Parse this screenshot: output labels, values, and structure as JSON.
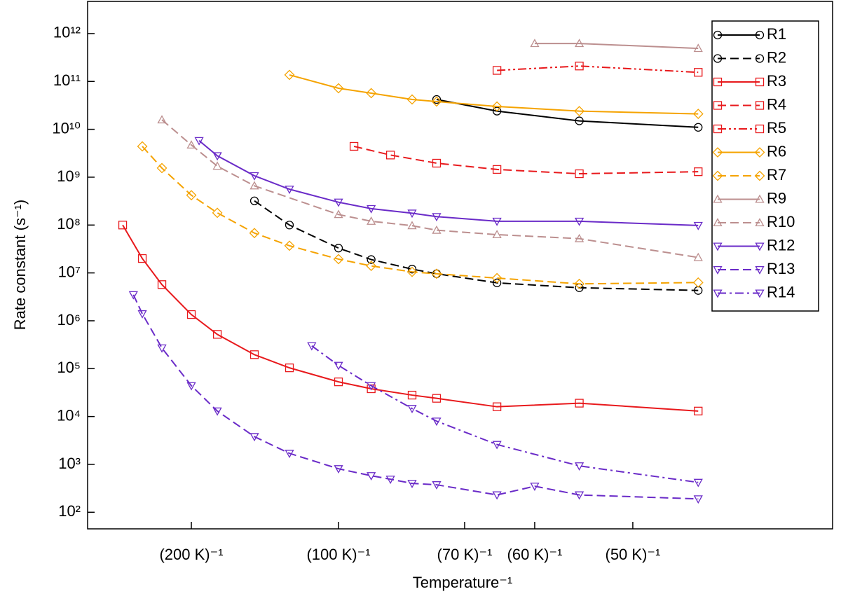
{
  "chart_data": {
    "type": "line",
    "xlabel": "Temperature⁻¹",
    "ylabel": "Rate constant (s⁻¹)",
    "xscale": "reciprocal",
    "yscale": "log",
    "xlim": [
      678,
      37.33
    ],
    "ylim": [
      45,
      4700000000000.0
    ],
    "xticks": [
      {
        "value": 200,
        "label": "(200 K)⁻¹"
      },
      {
        "value": 100,
        "label": "(100 K)⁻¹"
      },
      {
        "value": 70,
        "label": "(70 K)⁻¹"
      },
      {
        "value": 60,
        "label": "(60 K)⁻¹"
      },
      {
        "value": 50,
        "label": "(50 K)⁻¹"
      }
    ],
    "yticks": [
      {
        "value": 100,
        "label": "10²"
      },
      {
        "value": 1000,
        "label": "10³"
      },
      {
        "value": 10000,
        "label": "10⁴"
      },
      {
        "value": 100000,
        "label": "10⁵"
      },
      {
        "value": 1000000,
        "label": "10⁶"
      },
      {
        "value": 10000000,
        "label": "10⁷"
      },
      {
        "value": 100000000,
        "label": "10⁸"
      },
      {
        "value": 1000000000,
        "label": "10⁹"
      },
      {
        "value": 10000000000,
        "label": "10¹⁰"
      },
      {
        "value": 100000000000,
        "label": "10¹¹"
      },
      {
        "value": 1000000000000,
        "label": "10¹²"
      }
    ],
    "legend": "upper right",
    "series": [
      {
        "name": "R1",
        "color": "#000000",
        "linestyle": "solid",
        "marker": "circle",
        "x": [
          75,
          65,
          55,
          45
        ],
        "values": [
          42000000000.0,
          24000000000.0,
          15000000000.0,
          11000000000.0
        ]
      },
      {
        "name": "R2",
        "color": "#000000",
        "linestyle": "dashed",
        "marker": "circle",
        "x": [
          140,
          120,
          100,
          90,
          80,
          75,
          65,
          55,
          45
        ],
        "values": [
          320000000.0,
          100000000.0,
          33000000.0,
          19000000.0,
          12000000.0,
          9600000.0,
          6200000.0,
          4900000.0,
          4300000.0
        ]
      },
      {
        "name": "R3",
        "color": "#e8191c",
        "linestyle": "solid",
        "marker": "square",
        "x": [
          375,
          300,
          250,
          200,
          170,
          140,
          120,
          100,
          90,
          80,
          75,
          65,
          55,
          45
        ],
        "values": [
          100000000.0,
          20000000.0,
          5700000.0,
          1350000.0,
          520000.0,
          196000.0,
          104000.0,
          53000.0,
          38000.0,
          28000.0,
          24000.0,
          16000.0,
          19000.0,
          13000.0
        ]
      },
      {
        "name": "R4",
        "color": "#e8191c",
        "linestyle": "dashed",
        "marker": "square",
        "x": [
          95,
          85,
          75,
          65,
          55,
          45
        ],
        "values": [
          4400000000.0,
          2900000000.0,
          1960000000.0,
          1450000000.0,
          1180000000.0,
          1300000000.0
        ]
      },
      {
        "name": "R5",
        "color": "#e8191c",
        "linestyle": "dashdotdot",
        "marker": "square",
        "x": [
          65,
          55,
          45
        ],
        "values": [
          170000000000.0,
          210000000000.0,
          155000000000.0
        ]
      },
      {
        "name": "R6",
        "color": "#f5a300",
        "linestyle": "solid",
        "marker": "diamond",
        "x": [
          120,
          100,
          90,
          80,
          75,
          65,
          55,
          45
        ],
        "values": [
          137000000000.0,
          72000000000.0,
          57000000000.0,
          42000000000.0,
          38000000000.0,
          30000000000.0,
          24000000000.0,
          21000000000.0
        ]
      },
      {
        "name": "R7",
        "color": "#f5a300",
        "linestyle": "dashed",
        "marker": "diamond",
        "x": [
          300,
          250,
          200,
          170,
          140,
          120,
          100,
          90,
          80,
          75,
          65,
          55,
          45
        ],
        "values": [
          4400000000.0,
          1550000000.0,
          420000000.0,
          180000000.0,
          68000000.0,
          37000000.0,
          19400000.0,
          14000000.0,
          10500000.0,
          9600000.0,
          7800000.0,
          5900000.0,
          6300000.0
        ]
      },
      {
        "name": "R9",
        "color": "#bc8f8f",
        "linestyle": "solid",
        "marker": "triangle-up",
        "x": [
          60,
          55,
          45
        ],
        "values": [
          620000000000.0,
          620000000000.0,
          490000000000.0
        ]
      },
      {
        "name": "R10",
        "color": "#bc8f8f",
        "linestyle": "dashed",
        "marker": "triangle-up",
        "x": [
          250,
          200,
          170,
          140,
          100,
          90,
          80,
          75,
          65,
          55,
          45
        ],
        "values": [
          15800000000.0,
          4700000000.0,
          1700000000.0,
          660000000.0,
          166000000.0,
          120000000.0,
          97000000.0,
          78000000.0,
          63000000.0,
          52000000.0,
          21000000.0
        ]
      },
      {
        "name": "R12",
        "color": "#6a2bc8",
        "linestyle": "solid",
        "marker": "triangle-down",
        "x": [
          190,
          170,
          140,
          120,
          100,
          90,
          80,
          75,
          65,
          55,
          45
        ],
        "values": [
          5800000000.0,
          2800000000.0,
          1070000000.0,
          560000000.0,
          300000000.0,
          220000000.0,
          177000000.0,
          150000000.0,
          120000000.0,
          120000000.0,
          98000000.0
        ]
      },
      {
        "name": "R13",
        "color": "#6a2bc8",
        "linestyle": "dashed",
        "marker": "triangle-down",
        "x": [
          330,
          300,
          250,
          200,
          170,
          140,
          120,
          100,
          90,
          85,
          80,
          75,
          65,
          60,
          55,
          45
        ],
        "values": [
          3500000.0,
          1400000.0,
          270000.0,
          44000.0,
          13000.0,
          3800,
          1700,
          810,
          580,
          490,
          400,
          375,
          230,
          350,
          230,
          190
        ]
      },
      {
        "name": "R14",
        "color": "#6a2bc8",
        "linestyle": "dashdot",
        "marker": "triangle-down",
        "x": [
          110,
          100,
          90,
          80,
          75,
          65,
          55,
          45
        ],
        "values": [
          300000.0,
          117000.0,
          44000.0,
          14700.0,
          8000,
          2600,
          930,
          420
        ]
      }
    ]
  }
}
